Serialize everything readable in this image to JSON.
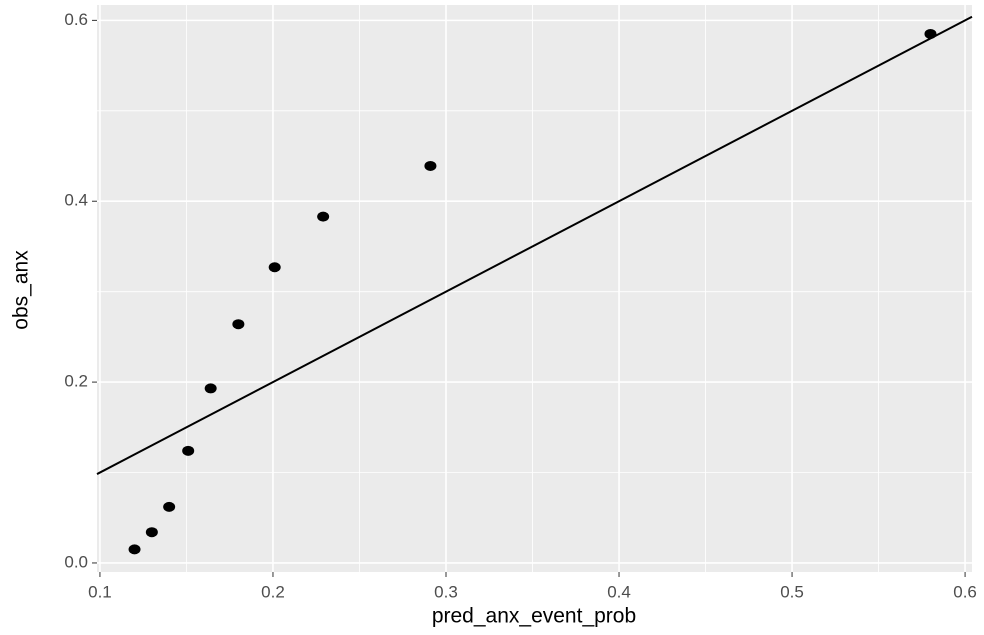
{
  "chart_data": {
    "type": "scatter",
    "x_label": "pred_anx_event_prob",
    "y_label": "obs_anx",
    "x": [
      0.12,
      0.13,
      0.14,
      0.151,
      0.164,
      0.18,
      0.201,
      0.229,
      0.291,
      0.58
    ],
    "values": [
      0.015,
      0.034,
      0.062,
      0.124,
      0.193,
      0.264,
      0.327,
      0.383,
      0.439,
      0.585
    ],
    "color": "#000000",
    "reference_line": {
      "slope": 1,
      "intercept": 0,
      "color": "#000000"
    },
    "xlim": [
      0.0983,
      0.604
    ],
    "ylim": [
      -0.01,
      0.617
    ],
    "xticks": [
      0.1,
      0.2,
      0.3,
      0.4,
      0.5,
      0.6
    ],
    "yticks": [
      {
        "value": 0,
        "label": "0.0"
      },
      0.2,
      0.4,
      0.6
    ],
    "grid": true,
    "minor_grid": true
  }
}
